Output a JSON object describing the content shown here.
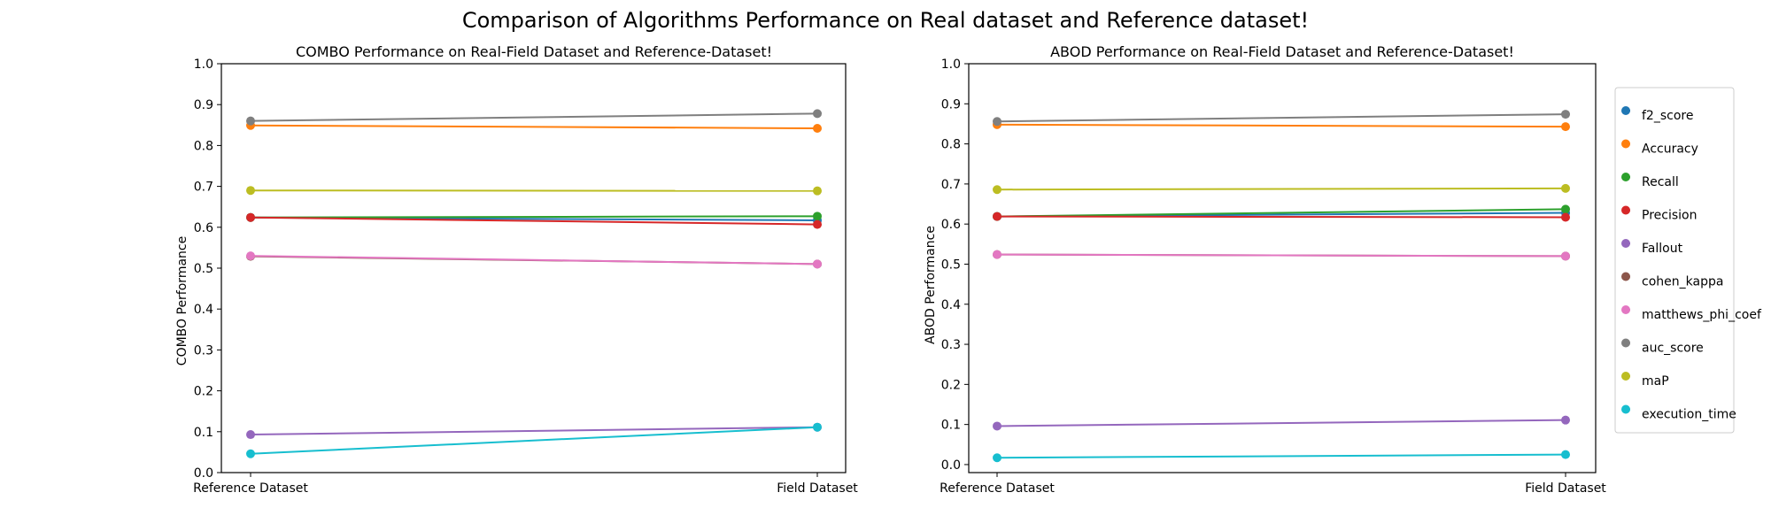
{
  "figure": {
    "suptitle": "Comparison of Algorithms Performance on Real dataset and Reference dataset!"
  },
  "colors": {
    "f2_score": "#1f77b4",
    "Accuracy": "#ff7f0e",
    "Recall": "#2ca02c",
    "Precision": "#d62728",
    "Fallout": "#9467bd",
    "cohen_kappa": "#8c564b",
    "matthews_phi_coef": "#e377c2",
    "auc_score": "#7f7f7f",
    "maP": "#bcbd22",
    "execution_time": "#17becf"
  },
  "legend": {
    "placement": "outside-right",
    "entries": [
      "f2_score",
      "Accuracy",
      "Recall",
      "Precision",
      "Fallout",
      "cohen_kappa",
      "matthews_phi_coef",
      "auc_score",
      "maP",
      "execution_time"
    ]
  },
  "chart_data": [
    {
      "type": "line",
      "title": "COMBO Performance on Real-Field Dataset and Reference-Dataset!",
      "xlabel": "",
      "ylabel": "COMBO Performance",
      "categories": [
        "Reference Dataset",
        "Field Dataset"
      ],
      "ylim": [
        0.0,
        1.0
      ],
      "yticks": [
        "0.0",
        "0.1",
        "0.2",
        "0.3",
        "0.4",
        "0.5",
        "0.6",
        "0.7",
        "0.8",
        "0.9",
        "1.0"
      ],
      "grid": false,
      "series": [
        {
          "name": "f2_score",
          "values": [
            0.624,
            0.617
          ]
        },
        {
          "name": "Accuracy",
          "values": [
            0.849,
            0.842
          ]
        },
        {
          "name": "Recall",
          "values": [
            0.624,
            0.627
          ]
        },
        {
          "name": "Precision",
          "values": [
            0.624,
            0.607
          ]
        },
        {
          "name": "Fallout",
          "values": [
            0.093,
            0.111
          ]
        },
        {
          "name": "cohen_kappa",
          "values": [
            0.529,
            0.51
          ]
        },
        {
          "name": "matthews_phi_coef",
          "values": [
            0.53,
            0.51
          ]
        },
        {
          "name": "auc_score",
          "values": [
            0.86,
            0.878
          ]
        },
        {
          "name": "maP",
          "values": [
            0.69,
            0.689
          ]
        },
        {
          "name": "execution_time",
          "values": [
            0.046,
            0.111
          ]
        }
      ]
    },
    {
      "type": "line",
      "title": "ABOD Performance on Real-Field Dataset and Reference-Dataset!",
      "xlabel": "",
      "ylabel": "ABOD Performance",
      "categories": [
        "Reference Dataset",
        "Field Dataset"
      ],
      "ylim": [
        -0.02,
        1.0
      ],
      "yticks": [
        "0.0",
        "0.1",
        "0.2",
        "0.3",
        "0.4",
        "0.5",
        "0.6",
        "0.7",
        "0.8",
        "0.9",
        "1.0"
      ],
      "grid": false,
      "series": [
        {
          "name": "f2_score",
          "values": [
            0.619,
            0.628
          ]
        },
        {
          "name": "Accuracy",
          "values": [
            0.848,
            0.843
          ]
        },
        {
          "name": "Recall",
          "values": [
            0.619,
            0.637
          ]
        },
        {
          "name": "Precision",
          "values": [
            0.619,
            0.617
          ]
        },
        {
          "name": "Fallout",
          "values": [
            0.096,
            0.111
          ]
        },
        {
          "name": "cohen_kappa",
          "values": [
            0.524,
            0.52
          ]
        },
        {
          "name": "matthews_phi_coef",
          "values": [
            0.524,
            0.52
          ]
        },
        {
          "name": "auc_score",
          "values": [
            0.856,
            0.874
          ]
        },
        {
          "name": "maP",
          "values": [
            0.686,
            0.689
          ]
        },
        {
          "name": "execution_time",
          "values": [
            0.017,
            0.025
          ]
        }
      ]
    }
  ]
}
